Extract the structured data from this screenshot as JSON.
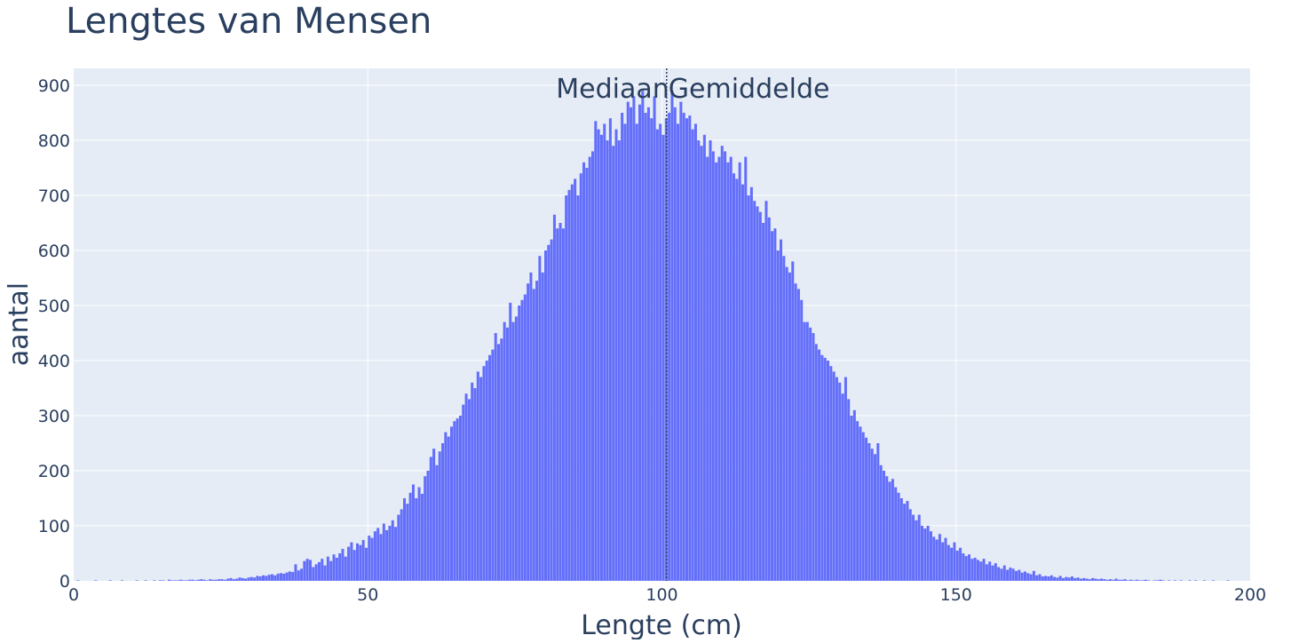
{
  "chart_data": {
    "type": "histogram",
    "title": "Lengtes van Mensen",
    "xlabel": "Lengte (cm)",
    "ylabel": "aantal",
    "xlim": [
      0,
      200
    ],
    "ylim": [
      0,
      900
    ],
    "xticks": [
      0,
      50,
      100,
      150,
      200
    ],
    "yticks": [
      0,
      100,
      200,
      300,
      400,
      500,
      600,
      700,
      800,
      900
    ],
    "grid": true,
    "bin_start": 0,
    "bin_width": 0.5,
    "counts": [
      0,
      1,
      0,
      0,
      0,
      0,
      0,
      1,
      0,
      0,
      0,
      0,
      1,
      0,
      0,
      0,
      1,
      0,
      0,
      0,
      0,
      1,
      0,
      0,
      1,
      0,
      0,
      1,
      0,
      1,
      1,
      0,
      2,
      1,
      1,
      1,
      2,
      1,
      1,
      2,
      2,
      1,
      2,
      3,
      2,
      1,
      3,
      2,
      2,
      3,
      3,
      2,
      4,
      5,
      3,
      4,
      6,
      5,
      4,
      6,
      7,
      6,
      9,
      8,
      10,
      9,
      11,
      12,
      10,
      13,
      14,
      13,
      15,
      17,
      16,
      30,
      19,
      22,
      36,
      40,
      38,
      25,
      30,
      34,
      40,
      28,
      44,
      36,
      48,
      42,
      50,
      58,
      44,
      62,
      70,
      56,
      68,
      65,
      74,
      60,
      82,
      78,
      90,
      96,
      85,
      104,
      92,
      100,
      110,
      98,
      120,
      130,
      150,
      140,
      160,
      175,
      150,
      170,
      158,
      190,
      200,
      225,
      240,
      210,
      235,
      250,
      270,
      262,
      280,
      290,
      295,
      300,
      320,
      340,
      330,
      360,
      350,
      380,
      370,
      390,
      400,
      410,
      420,
      450,
      430,
      440,
      470,
      460,
      505,
      470,
      480,
      500,
      510,
      520,
      540,
      560,
      530,
      545,
      590,
      560,
      600,
      610,
      620,
      665,
      640,
      650,
      640,
      700,
      710,
      720,
      730,
      700,
      740,
      760,
      750,
      770,
      780,
      835,
      820,
      810,
      830,
      800,
      840,
      790,
      820,
      800,
      850,
      830,
      870,
      860,
      880,
      830,
      865,
      890,
      850,
      860,
      840,
      880,
      820,
      830,
      810,
      840,
      850,
      890,
      860,
      830,
      870,
      850,
      840,
      845,
      820,
      830,
      800,
      790,
      810,
      770,
      800,
      780,
      760,
      770,
      790,
      780,
      760,
      770,
      740,
      730,
      760,
      720,
      770,
      700,
      715,
      690,
      680,
      670,
      650,
      690,
      660,
      635,
      640,
      600,
      620,
      590,
      570,
      560,
      580,
      540,
      530,
      510,
      470,
      470,
      460,
      450,
      430,
      420,
      410,
      405,
      400,
      390,
      380,
      370,
      360,
      340,
      370,
      330,
      300,
      310,
      290,
      280,
      270,
      260,
      250,
      240,
      230,
      250,
      210,
      200,
      190,
      180,
      185,
      170,
      160,
      150,
      140,
      145,
      130,
      120,
      110,
      120,
      100,
      95,
      100,
      90,
      80,
      75,
      85,
      70,
      78,
      65,
      60,
      70,
      55,
      60,
      50,
      45,
      48,
      40,
      42,
      38,
      35,
      40,
      30,
      35,
      28,
      32,
      25,
      22,
      28,
      20,
      24,
      22,
      18,
      20,
      15,
      17,
      14,
      12,
      18,
      10,
      12,
      8,
      9,
      8,
      10,
      7,
      6,
      9,
      5,
      7,
      6,
      8,
      5,
      6,
      4,
      5,
      4,
      3,
      5,
      4,
      3,
      4,
      3,
      2,
      3,
      2,
      4,
      2,
      2,
      3,
      1,
      2,
      1,
      2,
      1,
      1,
      2,
      1,
      0,
      1,
      1,
      2,
      1,
      0,
      1,
      0,
      1,
      0,
      1,
      0,
      0,
      1,
      0,
      1,
      0,
      0,
      1,
      0,
      0,
      1,
      0,
      0,
      0,
      0,
      1,
      0,
      0,
      0,
      0,
      0,
      0,
      0
    ],
    "vlines": [
      {
        "label": "Mediaan",
        "value": 100.8,
        "anchor": "right"
      },
      {
        "label": "Gemiddelde",
        "value": 100.8,
        "anchor": "left"
      }
    ],
    "colors": {
      "bars": "#636EFA",
      "plot_bg": "#E5ECF6",
      "grid": "#FFFFFF",
      "text": "#2A3F5F"
    }
  }
}
